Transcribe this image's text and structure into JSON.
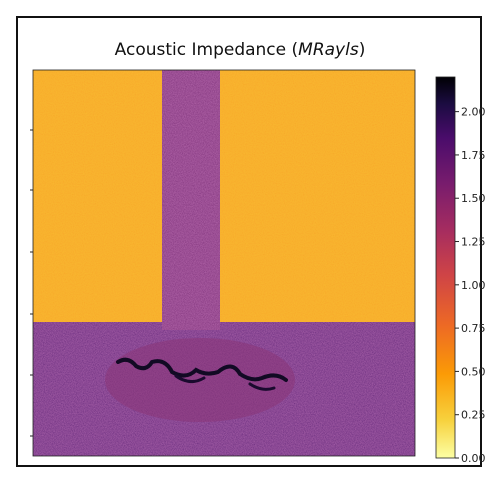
{
  "chart_data": {
    "type": "heatmap",
    "title_main": "Acoustic Impedance (",
    "title_unit": "MRayls",
    "title_end": ")",
    "colormap": "inferno",
    "colorbar": {
      "vmin": 0.0,
      "vmax": 2.2,
      "ticks": [
        0.0,
        0.25,
        0.5,
        0.75,
        1.0,
        1.25,
        1.5,
        1.75,
        2.0
      ],
      "tick_labels": [
        "0.00",
        "0.25",
        "0.50",
        "0.75",
        "1.00",
        "1.25",
        "1.50",
        "1.75",
        "2.00"
      ]
    },
    "regions": [
      {
        "name": "background-upper",
        "value": 0.45
      },
      {
        "name": "rod",
        "value": 1.45
      },
      {
        "name": "lower-medium",
        "value": 1.55
      },
      {
        "name": "inclusion-ellipse",
        "value": 1.3
      },
      {
        "name": "dark-inclusions",
        "value": 2.1
      }
    ],
    "colors": {
      "background_yellow": "#f7a524",
      "purple": "#6a1a73",
      "dark": "#1a0a2e"
    }
  }
}
